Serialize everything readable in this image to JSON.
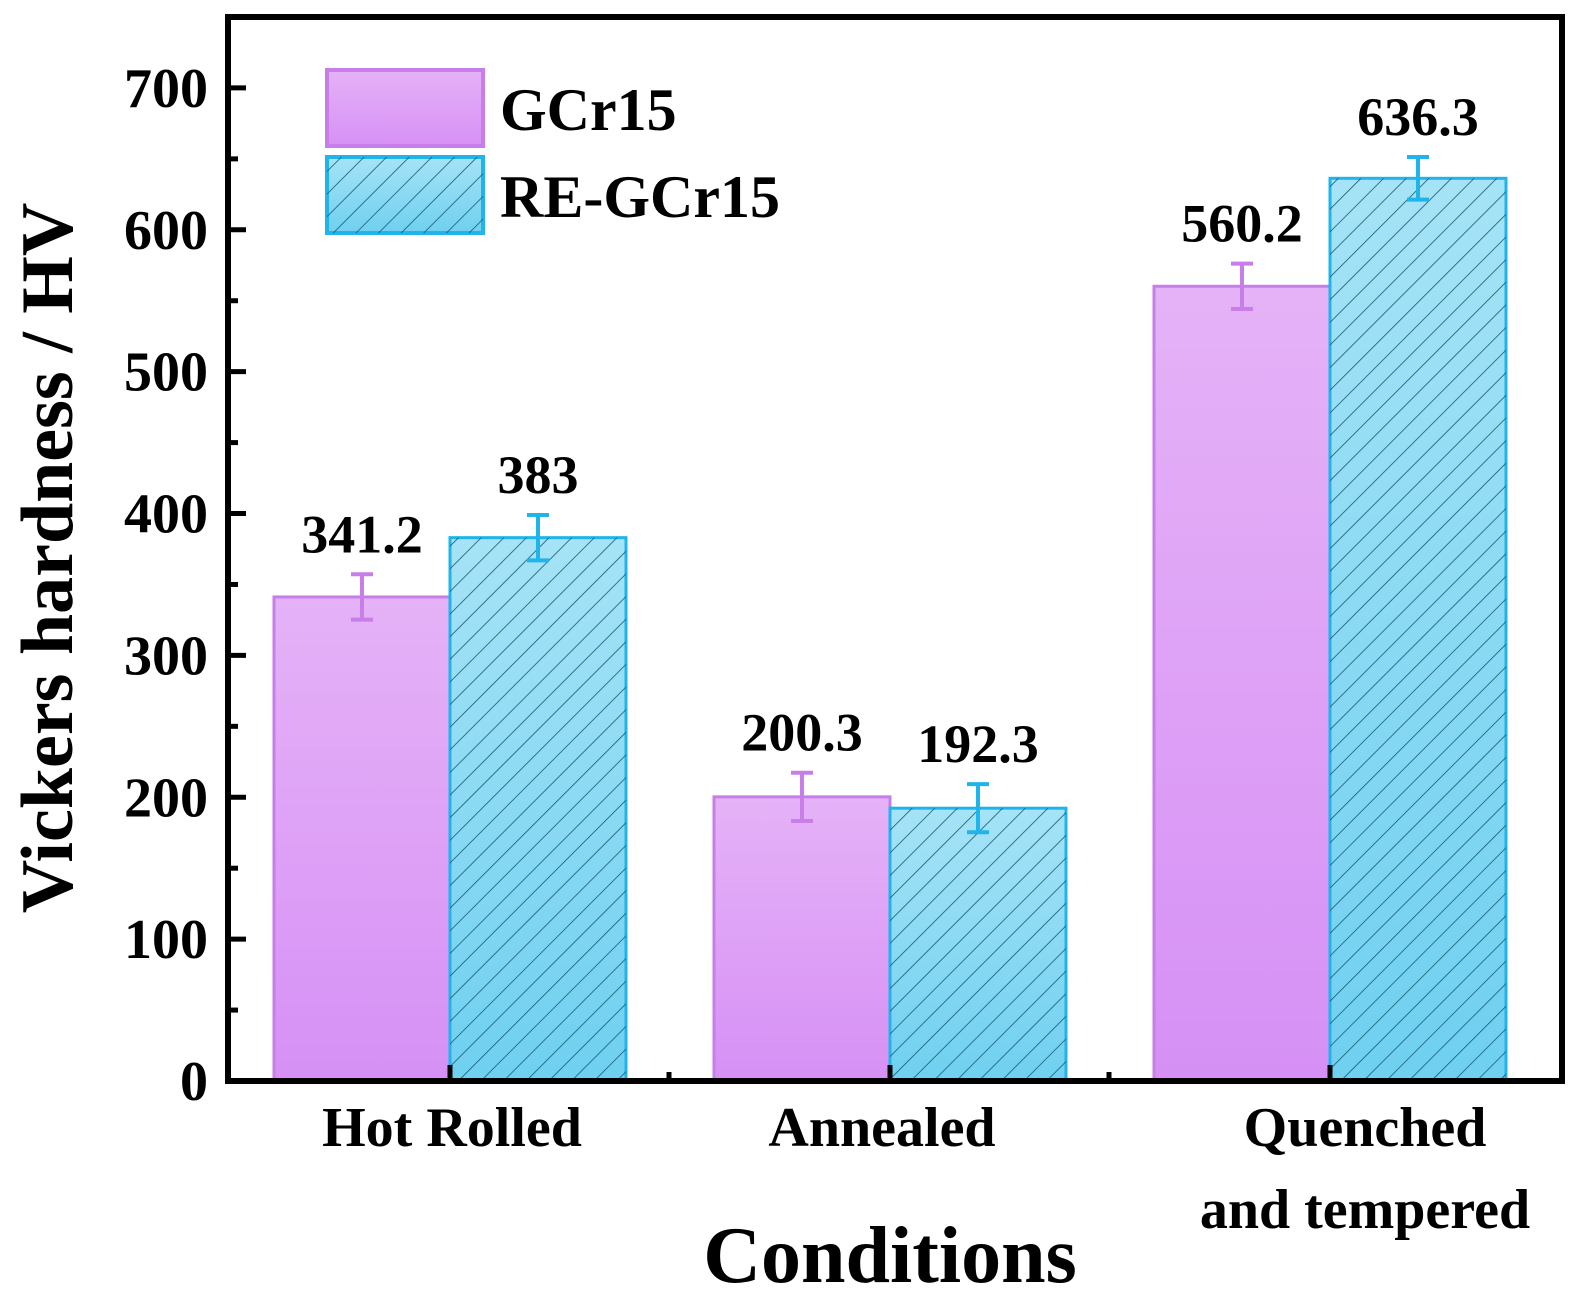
{
  "chart_data": {
    "type": "bar",
    "title": "",
    "xlabel": "Conditions",
    "ylabel": "Vickers hardness / HV",
    "ylim": [
      0,
      750
    ],
    "yticks": [
      "0",
      "100",
      "200",
      "300",
      "400",
      "500",
      "600",
      "700"
    ],
    "categories": [
      [
        "Hot Rolled"
      ],
      [
        "Annealed"
      ],
      [
        "Quenched",
        "and tempered"
      ]
    ],
    "series": [
      {
        "name": "GCr15",
        "values": [
          341.2,
          200.3,
          560.2
        ],
        "labels": [
          "341.2",
          "200.3",
          "560.2"
        ],
        "errors": [
          16,
          17,
          16
        ],
        "fill": "#dfa0f5",
        "stroke": "#c77ee8",
        "hatch": false
      },
      {
        "name": "RE-GCr15",
        "values": [
          383,
          192.3,
          636.3
        ],
        "labels": [
          "383",
          "192.3",
          "636.3"
        ],
        "errors": [
          16,
          17,
          15
        ],
        "fill": "#8ad8f2",
        "stroke": "#1fb5ea",
        "hatch": true
      }
    ],
    "legend": "top-left",
    "grid": false
  }
}
